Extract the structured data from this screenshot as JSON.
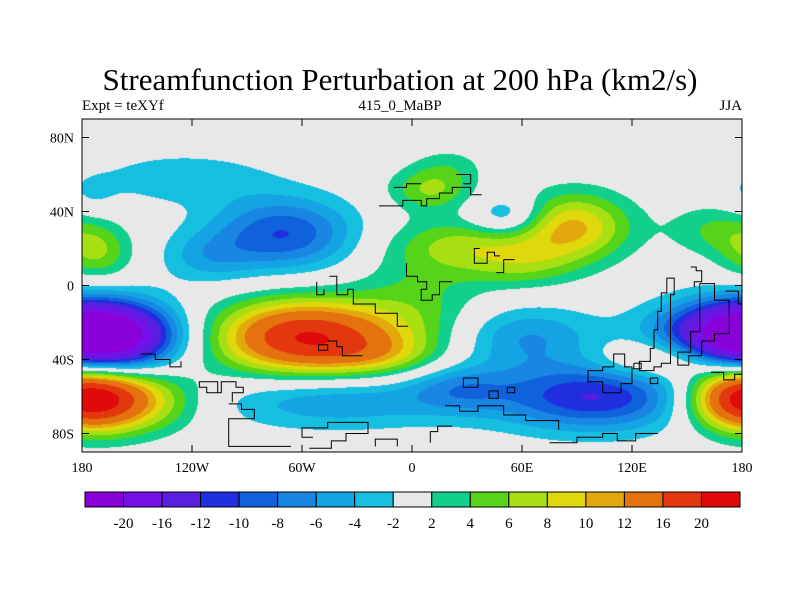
{
  "title": "Streamfunction Perturbation at 200 hPa (km2/s)",
  "subtitle_left": "Expt = teXYf",
  "subtitle_center": "415_0_MaBP",
  "subtitle_right": "JJA",
  "map": {
    "projection": "cylindrical-equidistant",
    "lon_range": [
      -180,
      180
    ],
    "lat_range": [
      -90,
      90
    ],
    "x_ticks": [
      {
        "value": -180,
        "label": "180"
      },
      {
        "value": -120,
        "label": "120W"
      },
      {
        "value": -60,
        "label": "60W"
      },
      {
        "value": 0,
        "label": "0"
      },
      {
        "value": 60,
        "label": "60E"
      },
      {
        "value": 120,
        "label": "120E"
      },
      {
        "value": 180,
        "label": "180"
      }
    ],
    "y_ticks": [
      {
        "value": 80,
        "label": "80N"
      },
      {
        "value": 40,
        "label": "40N"
      },
      {
        "value": 0,
        "label": "0"
      },
      {
        "value": -40,
        "label": "40S"
      },
      {
        "value": -80,
        "label": "80S"
      }
    ],
    "background_color": "#e8e8e8",
    "coastline_color": "#000000"
  },
  "chart_data": {
    "type": "heatmap",
    "field": "streamfunction perturbation",
    "level_hPa": 200,
    "units": "km2/s",
    "lon_range": [
      -180,
      180
    ],
    "lat_range": [
      -90,
      90
    ],
    "contour_levels": [
      -20,
      -16,
      -12,
      -10,
      -8,
      -6,
      -4,
      -2,
      2,
      4,
      6,
      8,
      10,
      12,
      16,
      20
    ],
    "color_bins": [
      "#8a00d8",
      "#7410e8",
      "#5a1ee0",
      "#1f2fe0",
      "#0f62dc",
      "#1a86e4",
      "#14a4e4",
      "#16bfe0",
      "#e8e8e8",
      "#12d08c",
      "#55d41a",
      "#a8df12",
      "#dfd80c",
      "#e3a80c",
      "#e4720e",
      "#e3380f",
      "#e00a0a"
    ],
    "features": [
      {
        "lon": -125,
        "lat": 58,
        "sx": 35,
        "sy": 10,
        "value": -3.5
      },
      {
        "lon": -175,
        "lat": 48,
        "sx": 10,
        "sy": 8,
        "value": -2
      },
      {
        "lon": -172,
        "lat": 18,
        "sx": 14,
        "sy": 11,
        "value": 6
      },
      {
        "lon": -70,
        "lat": 28,
        "sx": 28,
        "sy": 14,
        "value": -10
      },
      {
        "lon": -112,
        "lat": 15,
        "sx": 18,
        "sy": 10,
        "value": -4
      },
      {
        "lon": -168,
        "lat": -28,
        "sx": 26,
        "sy": 13,
        "value": -20
      },
      {
        "lon": -160,
        "lat": -62,
        "sx": 28,
        "sy": 12,
        "value": 12
      },
      {
        "lon": -58,
        "lat": -28,
        "sx": 34,
        "sy": 14,
        "value": 20
      },
      {
        "lon": -40,
        "lat": -62,
        "sx": 50,
        "sy": 11,
        "value": -6
      },
      {
        "lon": -20,
        "lat": -38,
        "sx": 22,
        "sy": 8,
        "value": 4
      },
      {
        "lon": 5,
        "lat": -10,
        "sx": 25,
        "sy": 25,
        "value": 4
      },
      {
        "lon": 10,
        "lat": 52,
        "sx": 16,
        "sy": 8,
        "value": 6
      },
      {
        "lon": 20,
        "lat": 65,
        "sx": 14,
        "sy": 7,
        "value": 2.5
      },
      {
        "lon": 52,
        "lat": 37,
        "sx": 14,
        "sy": 8,
        "value": -6
      },
      {
        "lon": 35,
        "lat": 22,
        "sx": 30,
        "sy": 10,
        "value": 6
      },
      {
        "lon": 88,
        "lat": 32,
        "sx": 22,
        "sy": 13,
        "value": 10
      },
      {
        "lon": 60,
        "lat": 10,
        "sx": 22,
        "sy": 9,
        "value": 4
      },
      {
        "lon": 62,
        "lat": -28,
        "sx": 28,
        "sy": 12,
        "value": -6
      },
      {
        "lon": 25,
        "lat": -55,
        "sx": 20,
        "sy": 9,
        "value": -5
      },
      {
        "lon": 100,
        "lat": -60,
        "sx": 38,
        "sy": 13,
        "value": -12
      },
      {
        "lon": 135,
        "lat": -40,
        "sx": 24,
        "sy": 8,
        "value": 6
      },
      {
        "lon": 165,
        "lat": 30,
        "sx": 18,
        "sy": 10,
        "value": 4
      },
      {
        "lon": 175,
        "lat": -25,
        "sx": 30,
        "sy": 12,
        "value": -14
      },
      {
        "lon": 180,
        "lat": -60,
        "sx": 20,
        "sy": 12,
        "value": 16
      }
    ],
    "colorbar_labels": [
      "-20",
      "-16",
      "-12",
      "-10",
      "-8",
      "-6",
      "-4",
      "-2",
      "2",
      "4",
      "6",
      "8",
      "10",
      "12",
      "16",
      "20"
    ]
  },
  "coastlines": [
    [
      [
        -148,
        -37
      ],
      [
        -140,
        -37
      ],
      [
        -140,
        -40
      ],
      [
        -132,
        -40
      ],
      [
        -132,
        -44
      ],
      [
        -126,
        -44
      ],
      [
        -126,
        -41
      ]
    ],
    [
      [
        -112,
        -58
      ],
      [
        -106,
        -58
      ],
      [
        -106,
        -52
      ],
      [
        -116,
        -52
      ],
      [
        -116,
        -55
      ],
      [
        -112,
        -55
      ],
      [
        -112,
        -58
      ],
      [
        -104,
        -58
      ],
      [
        -104,
        -52
      ],
      [
        -96,
        -52
      ],
      [
        -96,
        -55
      ],
      [
        -92,
        -55
      ],
      [
        -92,
        -58
      ],
      [
        -98,
        -58
      ],
      [
        -98,
        -63
      ]
    ],
    [
      [
        -100,
        -64
      ],
      [
        -93,
        -64
      ],
      [
        -93,
        -67
      ],
      [
        -86,
        -67
      ],
      [
        -86,
        -72
      ],
      [
        -100,
        -72
      ],
      [
        -100,
        -87
      ],
      [
        -66,
        -87
      ]
    ],
    [
      [
        -56,
        -88
      ],
      [
        -44,
        -88
      ],
      [
        -44,
        -84
      ],
      [
        -36,
        -84
      ],
      [
        -36,
        -80
      ],
      [
        -24,
        -80
      ],
      [
        -24,
        -74
      ],
      [
        -46,
        -74
      ],
      [
        -46,
        -77
      ],
      [
        -60,
        -77
      ],
      [
        -60,
        -82
      ],
      [
        -54,
        -82
      ]
    ],
    [
      [
        -20,
        -87
      ],
      [
        -20,
        -83
      ],
      [
        -8,
        -83
      ],
      [
        -8,
        -87
      ]
    ],
    [
      [
        -45,
        5
      ],
      [
        -41,
        5
      ],
      [
        -41,
        -5
      ],
      [
        -35,
        -5
      ],
      [
        -35,
        -2
      ],
      [
        -32,
        -2
      ],
      [
        -32,
        -10
      ],
      [
        -20,
        -10
      ],
      [
        -20,
        -15
      ],
      [
        -8,
        -15
      ],
      [
        -8,
        -22
      ],
      [
        -2,
        -22
      ]
    ],
    [
      [
        -52,
        2
      ],
      [
        -52,
        -5
      ],
      [
        -48,
        -5
      ],
      [
        -48,
        -2
      ]
    ],
    [
      [
        -46,
        -30
      ],
      [
        -41,
        -30
      ],
      [
        -41,
        -33
      ],
      [
        -38,
        -33
      ],
      [
        -38,
        -38
      ],
      [
        -27,
        -38
      ]
    ],
    [
      [
        -51,
        -32
      ],
      [
        -46,
        -32
      ],
      [
        -46,
        -35
      ],
      [
        -51,
        -35
      ],
      [
        -51,
        -32
      ]
    ],
    [
      [
        -3,
        12
      ],
      [
        -3,
        5
      ],
      [
        3,
        5
      ],
      [
        3,
        2
      ],
      [
        8,
        2
      ],
      [
        8,
        -2
      ],
      [
        5,
        -2
      ],
      [
        5,
        -8
      ],
      [
        11,
        -8
      ],
      [
        11,
        -5
      ],
      [
        15,
        -5
      ],
      [
        15,
        2
      ],
      [
        22,
        2
      ]
    ],
    [
      [
        -18,
        43
      ],
      [
        -5,
        43
      ],
      [
        -5,
        46
      ],
      [
        5,
        46
      ],
      [
        5,
        43
      ],
      [
        8,
        43
      ],
      [
        8,
        47
      ],
      [
        15,
        47
      ],
      [
        15,
        50
      ],
      [
        22,
        50
      ],
      [
        22,
        53
      ],
      [
        32,
        53
      ],
      [
        32,
        49
      ],
      [
        38,
        49
      ]
    ],
    [
      [
        -10,
        53
      ],
      [
        -3,
        53
      ],
      [
        -3,
        55
      ],
      [
        5,
        55
      ]
    ],
    [
      [
        24,
        60
      ],
      [
        32,
        60
      ],
      [
        32,
        55
      ],
      [
        28,
        55
      ]
    ],
    [
      [
        37,
        20
      ],
      [
        34,
        20
      ],
      [
        34,
        12
      ],
      [
        41,
        12
      ],
      [
        41,
        18
      ],
      [
        45,
        18
      ],
      [
        45,
        16
      ],
      [
        48,
        16
      ]
    ],
    [
      [
        46,
        7
      ],
      [
        50,
        7
      ],
      [
        50,
        14
      ],
      [
        56,
        14
      ]
    ],
    [
      [
        28,
        -50
      ],
      [
        36,
        -50
      ],
      [
        36,
        -55
      ],
      [
        28,
        -55
      ],
      [
        28,
        -50
      ]
    ],
    [
      [
        42,
        -57
      ],
      [
        47,
        -57
      ],
      [
        47,
        -61
      ],
      [
        42,
        -61
      ],
      [
        42,
        -57
      ]
    ],
    [
      [
        52,
        -55
      ],
      [
        56,
        -55
      ],
      [
        56,
        -58
      ],
      [
        52,
        -58
      ],
      [
        52,
        -55
      ]
    ],
    [
      [
        18,
        -65
      ],
      [
        26,
        -65
      ],
      [
        26,
        -68
      ],
      [
        36,
        -68
      ],
      [
        36,
        -65
      ],
      [
        50,
        -65
      ],
      [
        50,
        -70
      ],
      [
        62,
        -70
      ],
      [
        62,
        -73
      ],
      [
        80,
        -73
      ],
      [
        80,
        -78
      ]
    ],
    [
      [
        10,
        -85
      ],
      [
        10,
        -79
      ],
      [
        14,
        -79
      ],
      [
        14,
        -76
      ],
      [
        22,
        -76
      ]
    ],
    [
      [
        75,
        -85
      ],
      [
        90,
        -85
      ],
      [
        90,
        -82
      ],
      [
        104,
        -82
      ],
      [
        104,
        -80
      ],
      [
        112,
        -80
      ],
      [
        112,
        -84
      ],
      [
        122,
        -84
      ],
      [
        122,
        -80
      ],
      [
        134,
        -80
      ]
    ],
    [
      [
        104,
        -44
      ],
      [
        110,
        -44
      ],
      [
        110,
        -37
      ],
      [
        116,
        -37
      ],
      [
        116,
        -44
      ],
      [
        120,
        -44
      ],
      [
        120,
        -53
      ],
      [
        114,
        -53
      ],
      [
        114,
        -58
      ],
      [
        104,
        -58
      ],
      [
        104,
        -52
      ],
      [
        96,
        -52
      ],
      [
        96,
        -46
      ],
      [
        104,
        -46
      ],
      [
        104,
        -44
      ]
    ],
    [
      [
        121,
        -42
      ],
      [
        125,
        -42
      ],
      [
        125,
        -45
      ],
      [
        121,
        -45
      ],
      [
        121,
        -42
      ]
    ],
    [
      [
        130,
        -50
      ],
      [
        134,
        -50
      ],
      [
        134,
        -53
      ],
      [
        130,
        -53
      ],
      [
        130,
        -50
      ]
    ],
    [
      [
        139,
        4
      ],
      [
        143,
        4
      ],
      [
        143,
        -5
      ],
      [
        141,
        -5
      ],
      [
        141,
        -42
      ],
      [
        136,
        -42
      ],
      [
        136,
        -44
      ],
      [
        132,
        -44
      ],
      [
        132,
        -46
      ],
      [
        124,
        -46
      ],
      [
        124,
        -41
      ],
      [
        130,
        -41
      ],
      [
        130,
        -34
      ],
      [
        132,
        -34
      ],
      [
        132,
        -24
      ],
      [
        134,
        -24
      ],
      [
        134,
        -14
      ],
      [
        136,
        -14
      ],
      [
        136,
        -4
      ],
      [
        139,
        -4
      ],
      [
        139,
        4
      ]
    ],
    [
      [
        152,
        10
      ],
      [
        155,
        10
      ],
      [
        155,
        8
      ],
      [
        158,
        8
      ],
      [
        158,
        2
      ],
      [
        154,
        2
      ],
      [
        154,
        -1
      ]
    ],
    [
      [
        157,
        1
      ],
      [
        165,
        1
      ],
      [
        165,
        -8
      ],
      [
        173,
        -8
      ],
      [
        173,
        -26
      ],
      [
        165,
        -26
      ],
      [
        165,
        -30
      ],
      [
        158,
        -30
      ],
      [
        158,
        -38
      ],
      [
        151,
        -38
      ],
      [
        151,
        -43
      ],
      [
        145,
        -43
      ],
      [
        145,
        -36
      ],
      [
        152,
        -36
      ],
      [
        152,
        -25
      ],
      [
        157,
        -25
      ],
      [
        157,
        1
      ]
    ],
    [
      [
        171,
        -3
      ],
      [
        178,
        -3
      ],
      [
        178,
        -10
      ],
      [
        180,
        -10
      ]
    ],
    [
      [
        163,
        -47
      ],
      [
        170,
        -47
      ],
      [
        170,
        -51
      ],
      [
        176,
        -51
      ],
      [
        176,
        -48
      ],
      [
        180,
        -48
      ]
    ]
  ]
}
